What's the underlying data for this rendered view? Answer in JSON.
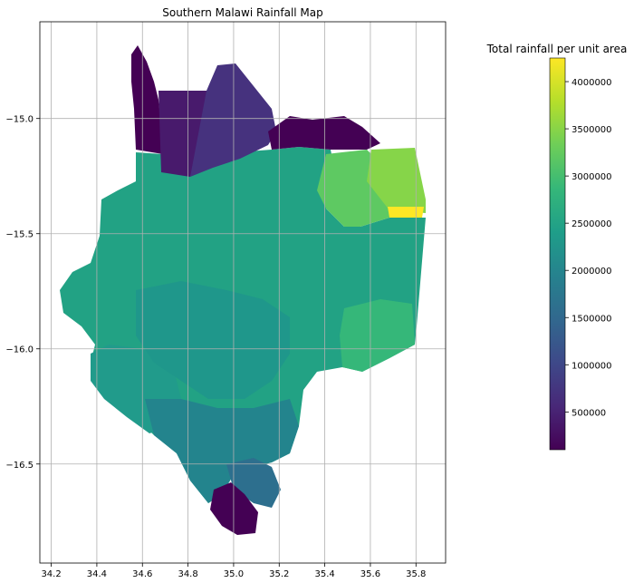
{
  "map": {
    "title": "Southern Malawi Rainfall Map",
    "x_ticks": [
      "34.2",
      "34.4",
      "34.6",
      "34.8",
      "35.0",
      "35.2",
      "35.4",
      "35.6",
      "35.8"
    ],
    "x_tick_values": [
      34.2,
      34.4,
      34.6,
      34.8,
      35.0,
      35.2,
      35.4,
      35.6,
      35.8
    ],
    "y_ticks": [
      "−15.0",
      "−15.5",
      "−16.0",
      "−16.5"
    ],
    "y_tick_values": [
      -15.0,
      -15.5,
      -16.0,
      -16.5
    ],
    "xlim": [
      34.15,
      35.93
    ],
    "ylim": [
      -16.93,
      -14.58
    ],
    "grid": true,
    "colormap": "viridis"
  },
  "colorbar": {
    "title": "Total rainfall per unit area",
    "tick_labels": [
      "500000",
      "1000000",
      "1500000",
      "2000000",
      "2500000",
      "3000000",
      "3500000",
      "4000000"
    ],
    "tick_values": [
      500000,
      1000000,
      1500000,
      2000000,
      2500000,
      3000000,
      3500000,
      4000000
    ],
    "range": [
      100000,
      4250000
    ],
    "colors": [
      "#440154",
      "#482878",
      "#3e4989",
      "#31688e",
      "#26828e",
      "#1f9e89",
      "#35b779",
      "#6ece58",
      "#b5de2b",
      "#fde725"
    ]
  },
  "regions_note_colors": {
    "low": "#440154",
    "mid_low": "#472d7b",
    "mid": "#2a788e",
    "mid_high": "#23a083",
    "high": "#7ad151",
    "max": "#fde725"
  }
}
